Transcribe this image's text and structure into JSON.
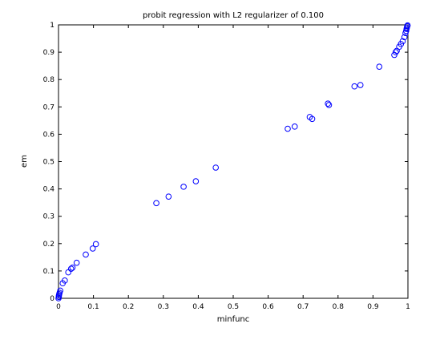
{
  "chart_data": {
    "type": "scatter",
    "title": "probit regression with L2 regularizer of 0.100",
    "xlabel": "minfunc",
    "ylabel": "em",
    "xlim": [
      0,
      1
    ],
    "ylim": [
      0,
      1
    ],
    "xticks": [
      "0",
      "0.1",
      "0.2",
      "0.3",
      "0.4",
      "0.5",
      "0.6",
      "0.7",
      "0.8",
      "0.9",
      "1"
    ],
    "yticks": [
      "0",
      "0.1",
      "0.2",
      "0.3",
      "0.4",
      "0.5",
      "0.6",
      "0.7",
      "0.8",
      "0.9",
      "1"
    ],
    "grid": false,
    "marker": "circle-open",
    "marker_color": "#0000ff",
    "points": [
      [
        0.0,
        0.0
      ],
      [
        0.001,
        0.005
      ],
      [
        0.001,
        0.01
      ],
      [
        0.002,
        0.015
      ],
      [
        0.003,
        0.02
      ],
      [
        0.005,
        0.028
      ],
      [
        0.012,
        0.055
      ],
      [
        0.018,
        0.065
      ],
      [
        0.028,
        0.095
      ],
      [
        0.036,
        0.108
      ],
      [
        0.04,
        0.112
      ],
      [
        0.052,
        0.13
      ],
      [
        0.078,
        0.16
      ],
      [
        0.098,
        0.182
      ],
      [
        0.107,
        0.198
      ],
      [
        0.28,
        0.348
      ],
      [
        0.315,
        0.372
      ],
      [
        0.358,
        0.408
      ],
      [
        0.393,
        0.428
      ],
      [
        0.45,
        0.478
      ],
      [
        0.656,
        0.62
      ],
      [
        0.676,
        0.628
      ],
      [
        0.719,
        0.663
      ],
      [
        0.726,
        0.656
      ],
      [
        0.771,
        0.712
      ],
      [
        0.774,
        0.707
      ],
      [
        0.847,
        0.775
      ],
      [
        0.864,
        0.78
      ],
      [
        0.918,
        0.847
      ],
      [
        0.961,
        0.89
      ],
      [
        0.965,
        0.9
      ],
      [
        0.968,
        0.905
      ],
      [
        0.975,
        0.92
      ],
      [
        0.98,
        0.93
      ],
      [
        0.985,
        0.94
      ],
      [
        0.99,
        0.955
      ],
      [
        0.993,
        0.97
      ],
      [
        0.995,
        0.978
      ],
      [
        0.996,
        0.985
      ],
      [
        0.997,
        0.99
      ],
      [
        0.998,
        0.995
      ],
      [
        0.999,
        0.998
      ]
    ]
  }
}
